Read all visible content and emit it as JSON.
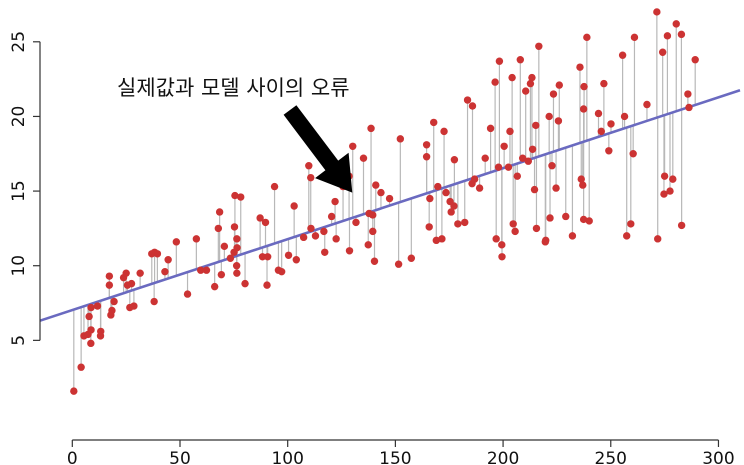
{
  "chart_data": {
    "type": "scatter",
    "title": "",
    "xlabel": "",
    "ylabel": "",
    "xlim": [
      -15,
      310
    ],
    "ylim": [
      0,
      27.8
    ],
    "x_ticks": [
      0,
      50,
      100,
      150,
      200,
      250,
      300
    ],
    "y_ticks": [
      5,
      10,
      15,
      20,
      25
    ],
    "grid": false,
    "legend": "none",
    "regression_line": {
      "intercept": 7.03,
      "slope": 0.0475
    },
    "annotation": {
      "text": "실제값과 모델 사이의 오류",
      "arrow_tip": [
        130,
        14.9
      ]
    },
    "colors": {
      "point": "#cc3333",
      "line": "#6a6ac0",
      "residual": "#b8b8b8",
      "axis": "#333333"
    },
    "points": [
      [
        0.7,
        1.6
      ],
      [
        4.1,
        3.2
      ],
      [
        5.4,
        5.3
      ],
      [
        7.3,
        5.4
      ],
      [
        7.8,
        6.6
      ],
      [
        8.6,
        4.8
      ],
      [
        8.7,
        7.2
      ],
      [
        8.7,
        5.7
      ],
      [
        11.7,
        7.3
      ],
      [
        13.1,
        5.3
      ],
      [
        13.2,
        5.6
      ],
      [
        17.2,
        9.3
      ],
      [
        17.2,
        8.7
      ],
      [
        17.9,
        6.7
      ],
      [
        18.4,
        7.0
      ],
      [
        19.4,
        7.6
      ],
      [
        23.8,
        9.2
      ],
      [
        25.0,
        9.5
      ],
      [
        25.6,
        8.7
      ],
      [
        26.7,
        7.2
      ],
      [
        27.5,
        8.8
      ],
      [
        28.6,
        7.3
      ],
      [
        31.5,
        9.5
      ],
      [
        36.9,
        10.8
      ],
      [
        38.0,
        7.6
      ],
      [
        38.2,
        10.9
      ],
      [
        39.5,
        10.8
      ],
      [
        43.0,
        9.6
      ],
      [
        44.5,
        10.4
      ],
      [
        48.3,
        11.6
      ],
      [
        53.5,
        8.1
      ],
      [
        57.6,
        11.8
      ],
      [
        59.6,
        9.7
      ],
      [
        62.3,
        9.7
      ],
      [
        66.1,
        8.6
      ],
      [
        67.8,
        12.5
      ],
      [
        68.4,
        13.6
      ],
      [
        69.2,
        9.4
      ],
      [
        70.6,
        11.3
      ],
      [
        73.4,
        10.5
      ],
      [
        75.1,
        10.9
      ],
      [
        75.3,
        12.6
      ],
      [
        75.5,
        14.7
      ],
      [
        76.3,
        10.0
      ],
      [
        76.4,
        9.5
      ],
      [
        76.4,
        11.8
      ],
      [
        76.5,
        11.2
      ],
      [
        78.2,
        14.6
      ],
      [
        80.2,
        8.8
      ],
      [
        87.2,
        13.2
      ],
      [
        88.3,
        10.6
      ],
      [
        89.7,
        12.9
      ],
      [
        90.4,
        8.7
      ],
      [
        90.7,
        10.6
      ],
      [
        93.9,
        15.3
      ],
      [
        95.7,
        9.7
      ],
      [
        97.2,
        9.6
      ],
      [
        100.4,
        10.7
      ],
      [
        103.0,
        14.0
      ],
      [
        104.0,
        10.4
      ],
      [
        107.4,
        11.9
      ],
      [
        109.8,
        16.7
      ],
      [
        110.7,
        15.9
      ],
      [
        110.8,
        12.5
      ],
      [
        112.9,
        12.0
      ],
      [
        116.8,
        12.3
      ],
      [
        117.2,
        10.9
      ],
      [
        120.4,
        13.3
      ],
      [
        122.0,
        14.3
      ],
      [
        122.5,
        11.8
      ],
      [
        125.7,
        15.3
      ],
      [
        128.5,
        16.0
      ],
      [
        128.7,
        11.0
      ],
      [
        130.2,
        18.0
      ],
      [
        131.7,
        12.9
      ],
      [
        135.2,
        17.2
      ],
      [
        137.4,
        11.4
      ],
      [
        137.8,
        13.5
      ],
      [
        138.7,
        19.2
      ],
      [
        139.5,
        12.3
      ],
      [
        139.5,
        13.4
      ],
      [
        140.3,
        10.3
      ],
      [
        140.9,
        15.4
      ],
      [
        143.3,
        14.9
      ],
      [
        147.3,
        14.5
      ],
      [
        151.5,
        10.1
      ],
      [
        152.3,
        18.5
      ],
      [
        157.4,
        10.5
      ],
      [
        164.5,
        17.3
      ],
      [
        164.5,
        18.1
      ],
      [
        165.7,
        12.6
      ],
      [
        166.0,
        14.5
      ],
      [
        167.8,
        19.6
      ],
      [
        169.0,
        11.7
      ],
      [
        169.7,
        15.3
      ],
      [
        171.6,
        11.8
      ],
      [
        172.6,
        19.0
      ],
      [
        173.5,
        14.9
      ],
      [
        175.4,
        14.3
      ],
      [
        175.9,
        13.6
      ],
      [
        177.2,
        14.0
      ],
      [
        177.4,
        17.1
      ],
      [
        179.0,
        12.8
      ],
      [
        182.2,
        12.9
      ],
      [
        183.5,
        21.1
      ],
      [
        185.6,
        15.5
      ],
      [
        185.8,
        20.7
      ],
      [
        186.8,
        15.8
      ],
      [
        189.1,
        15.2
      ],
      [
        191.7,
        17.2
      ],
      [
        194.2,
        19.2
      ],
      [
        196.3,
        22.3
      ],
      [
        196.8,
        11.8
      ],
      [
        197.9,
        16.6
      ],
      [
        198.3,
        23.7
      ],
      [
        199.4,
        11.4
      ],
      [
        199.5,
        10.6
      ],
      [
        200.5,
        18.0
      ],
      [
        202.5,
        16.6
      ],
      [
        203.2,
        19.0
      ],
      [
        204.2,
        22.6
      ],
      [
        204.7,
        12.8
      ],
      [
        205.6,
        12.3
      ],
      [
        206.6,
        16.0
      ],
      [
        208.0,
        23.8
      ],
      [
        209.1,
        17.2
      ],
      [
        210.5,
        21.7
      ],
      [
        211.7,
        17.0
      ],
      [
        212.7,
        22.2
      ],
      [
        213.4,
        22.6
      ],
      [
        213.7,
        17.8
      ],
      [
        214.6,
        15.1
      ],
      [
        215.2,
        19.4
      ],
      [
        215.5,
        12.5
      ],
      [
        216.6,
        24.7
      ],
      [
        219.6,
        11.6
      ],
      [
        219.8,
        11.7
      ],
      [
        221.4,
        20.0
      ],
      [
        221.8,
        13.2
      ],
      [
        222.7,
        16.7
      ],
      [
        223.4,
        21.5
      ],
      [
        224.6,
        15.2
      ],
      [
        225.7,
        19.7
      ],
      [
        226.1,
        22.1
      ],
      [
        229.1,
        13.3
      ],
      [
        232.2,
        12.0
      ],
      [
        235.7,
        23.3
      ],
      [
        236.3,
        15.8
      ],
      [
        237.0,
        15.4
      ],
      [
        237.4,
        20.5
      ],
      [
        237.4,
        13.1
      ],
      [
        237.6,
        22.0
      ],
      [
        238.9,
        25.3
      ],
      [
        240.0,
        13.0
      ],
      [
        244.3,
        20.2
      ],
      [
        245.6,
        19.0
      ],
      [
        246.8,
        22.2
      ],
      [
        249.1,
        17.7
      ],
      [
        250.1,
        19.5
      ],
      [
        255.5,
        24.1
      ],
      [
        256.4,
        20.0
      ],
      [
        257.4,
        12.0
      ],
      [
        259.3,
        12.8
      ],
      [
        260.4,
        17.5
      ],
      [
        261.0,
        25.3
      ],
      [
        266.8,
        20.8
      ],
      [
        271.4,
        27.0
      ],
      [
        271.8,
        11.8
      ],
      [
        274.1,
        24.3
      ],
      [
        274.7,
        14.8
      ],
      [
        275.0,
        16.0
      ],
      [
        276.3,
        25.4
      ],
      [
        277.5,
        15.0
      ],
      [
        278.8,
        15.8
      ],
      [
        280.4,
        26.2
      ],
      [
        282.8,
        25.5
      ],
      [
        282.9,
        12.7
      ],
      [
        285.8,
        21.5
      ],
      [
        286.3,
        20.6
      ],
      [
        289.2,
        23.8
      ]
    ]
  }
}
